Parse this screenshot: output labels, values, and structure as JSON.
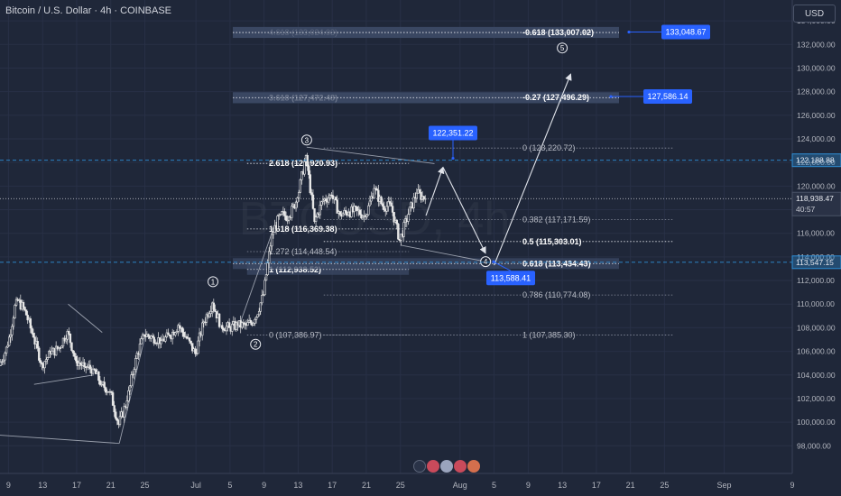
{
  "header": {
    "title": "Bitcoin / U.S. Dollar · 4h · COINBASE",
    "currency": "USD"
  },
  "watermark": "BTCUSD, 4h",
  "colors": {
    "background": "#1f2739",
    "candle": "#e8e8e8",
    "fib_band": "#3c4a66",
    "fib_text": "#b8bcc6",
    "fib_text_bright": "#ffffff",
    "blue_label": "#2962ff",
    "price_line": "#d1d4dc",
    "level_line": "#2e8fd6",
    "arrow": "#e0e3ea",
    "pattern": "#9aa0ad"
  },
  "chart_data": {
    "type": "candlestick",
    "y_axis": {
      "range": [
        96800,
        135000
      ],
      "ticks": [
        98000,
        100000,
        102000,
        104000,
        106000,
        108000,
        110000,
        112000,
        114000,
        116000,
        118000,
        120000,
        122000,
        124000,
        126000,
        128000,
        130000,
        132000,
        134000
      ],
      "tick_labels": [
        "98,000.00",
        "100,000.00",
        "102,000.00",
        "104,000.00",
        "106,000.00",
        "108,000.00",
        "110,000.00",
        "112,000.00",
        "114,000.00",
        "116,000.00",
        "118,000.00",
        "120,000.00",
        "122,000.00",
        "124,000.00",
        "126,000.00",
        "128,000.00",
        "130,000.00",
        "132,000.00",
        "134,000.00"
      ]
    },
    "x_axis": {
      "range": [
        "2025-06-08",
        "2025-09-09"
      ],
      "ticks": [
        {
          "date": "2025-06-09",
          "label": "9"
        },
        {
          "date": "2025-06-13",
          "label": "13"
        },
        {
          "date": "2025-06-17",
          "label": "17"
        },
        {
          "date": "2025-06-21",
          "label": "21"
        },
        {
          "date": "2025-06-25",
          "label": "25"
        },
        {
          "date": "2025-07-01",
          "label": "Jul"
        },
        {
          "date": "2025-07-05",
          "label": "5"
        },
        {
          "date": "2025-07-09",
          "label": "9"
        },
        {
          "date": "2025-07-13",
          "label": "13"
        },
        {
          "date": "2025-07-17",
          "label": "17"
        },
        {
          "date": "2025-07-21",
          "label": "21"
        },
        {
          "date": "2025-07-25",
          "label": "25"
        },
        {
          "date": "2025-08-01",
          "label": "Aug"
        },
        {
          "date": "2025-08-05",
          "label": "5"
        },
        {
          "date": "2025-08-09",
          "label": "9"
        },
        {
          "date": "2025-08-13",
          "label": "13"
        },
        {
          "date": "2025-08-17",
          "label": "17"
        },
        {
          "date": "2025-08-21",
          "label": "21"
        },
        {
          "date": "2025-08-25",
          "label": "25"
        },
        {
          "date": "2025-09-01",
          "label": "Sep"
        },
        {
          "date": "2025-09-09",
          "label": "9"
        }
      ]
    },
    "price_path": [
      [
        "2025-06-08",
        104800
      ],
      [
        "2025-06-09",
        106500
      ],
      [
        "2025-06-10",
        110400
      ],
      [
        "2025-06-11",
        109500
      ],
      [
        "2025-06-12",
        107200
      ],
      [
        "2025-06-13",
        104900
      ],
      [
        "2025-06-14",
        105800
      ],
      [
        "2025-06-15",
        106300
      ],
      [
        "2025-06-16",
        107700
      ],
      [
        "2025-06-17",
        105200
      ],
      [
        "2025-06-18",
        104700
      ],
      [
        "2025-06-19",
        104500
      ],
      [
        "2025-06-20",
        103200
      ],
      [
        "2025-06-21",
        102600
      ],
      [
        "2025-06-22",
        99800
      ],
      [
        "2025-06-23",
        101800
      ],
      [
        "2025-06-24",
        105400
      ],
      [
        "2025-06-25",
        107400
      ],
      [
        "2025-06-26",
        107200
      ],
      [
        "2025-06-27",
        106900
      ],
      [
        "2025-06-28",
        107300
      ],
      [
        "2025-06-29",
        108200
      ],
      [
        "2025-06-30",
        107100
      ],
      [
        "2025-07-01",
        105800
      ],
      [
        "2025-07-02",
        108500
      ],
      [
        "2025-07-03",
        110100
      ],
      [
        "2025-07-04",
        108200
      ],
      [
        "2025-07-05",
        108000
      ],
      [
        "2025-07-06",
        108200
      ],
      [
        "2025-07-07",
        108200
      ],
      [
        "2025-07-08",
        108700
      ],
      [
        "2025-07-09",
        110800
      ],
      [
        "2025-07-10",
        115900
      ],
      [
        "2025-07-11",
        117600
      ],
      [
        "2025-07-12",
        117400
      ],
      [
        "2025-07-13",
        119000
      ],
      [
        "2025-07-14",
        122600
      ],
      [
        "2025-07-15",
        117000
      ],
      [
        "2025-07-16",
        118800
      ],
      [
        "2025-07-17",
        119200
      ],
      [
        "2025-07-18",
        117600
      ],
      [
        "2025-07-19",
        117800
      ],
      [
        "2025-07-20",
        117900
      ],
      [
        "2025-07-21",
        117400
      ],
      [
        "2025-07-22",
        119800
      ],
      [
        "2025-07-23",
        118300
      ],
      [
        "2025-07-24",
        118300
      ],
      [
        "2025-07-25",
        115400
      ],
      [
        "2025-07-26",
        117600
      ],
      [
        "2025-07-27",
        119400
      ],
      [
        "2025-07-28",
        118938
      ]
    ],
    "last_price": {
      "value": 118938.47,
      "label": "118,938.47",
      "countdown": "40:57"
    },
    "price_labels": [
      {
        "value": 122188.88,
        "label": "122,188.88"
      },
      {
        "value": 113547.15,
        "label": "113,547.15"
      }
    ],
    "fib_retracement": [
      {
        "ratio": "0",
        "label": "0 (123,220.72)",
        "value": 123220.72
      },
      {
        "ratio": "0.382",
        "label": "0.382 (117,171.59)",
        "value": 117171.59
      },
      {
        "ratio": "0.5",
        "label": "0.5 (115,303.01)",
        "value": 115303.01,
        "bold": true
      },
      {
        "ratio": "0.618",
        "label": "0.618 (113,434.43)",
        "value": 113434.43,
        "bold": true,
        "band": true
      },
      {
        "ratio": "0.786",
        "label": "0.786 (110,774.08)",
        "value": 110774.08
      },
      {
        "ratio": "1",
        "label": "1 (107,385.30)",
        "value": 107385.3
      },
      {
        "ratio": "-0.27",
        "label": "-0.27 (127,496.29)",
        "value": 127496.29,
        "bold": true,
        "band": true
      },
      {
        "ratio": "-0.618",
        "label": "-0.618 (133,007.02)",
        "value": 133007.02,
        "bold": true,
        "band": true
      }
    ],
    "fib_extension": [
      {
        "ratio": "0",
        "label": "0 (107,386.97)",
        "value": 107386.97
      },
      {
        "ratio": "1",
        "label": "1 (112,938.52)",
        "value": 112938.52,
        "bold": true,
        "band": true
      },
      {
        "ratio": "1.272",
        "label": "1.272 (114,448.54)",
        "value": 114448.54
      },
      {
        "ratio": "1.618",
        "label": "1.618 (116,369.38)",
        "value": 116369.38,
        "bold": true
      },
      {
        "ratio": "2.618",
        "label": "2.618 (121,920.93)",
        "value": 121920.93,
        "bold": true
      },
      {
        "ratio": "3.618",
        "label": "3.618 (127,472.48)",
        "value": 127472.48,
        "bold": true,
        "band": true
      },
      {
        "ratio": "4.618",
        "label": "4.618 (133,024.03)",
        "value": 133024.03,
        "band": true
      }
    ],
    "target_labels": [
      {
        "label": "133,048.67",
        "value": 133048.67
      },
      {
        "label": "127,586.14",
        "value": 127586.14
      },
      {
        "label": "122,351.22",
        "value": 122351.22
      },
      {
        "label": "113,588.41",
        "value": 113588.41
      }
    ],
    "wave_labels": [
      {
        "label": "1",
        "date": "2025-07-03",
        "value": 111900
      },
      {
        "label": "2",
        "date": "2025-07-08",
        "value": 106600
      },
      {
        "label": "3",
        "date": "2025-07-14",
        "value": 123900
      },
      {
        "label": "4",
        "date": "2025-08-04",
        "value": 113600
      },
      {
        "label": "5",
        "date": "2025-08-13",
        "value": 131700
      }
    ],
    "projection_path": [
      [
        "2025-07-28",
        117500
      ],
      [
        "2025-07-30",
        121600
      ],
      [
        "2025-08-04",
        114300
      ],
      [
        "2025-08-05",
        113300
      ],
      [
        "2025-08-14",
        129500
      ]
    ]
  }
}
